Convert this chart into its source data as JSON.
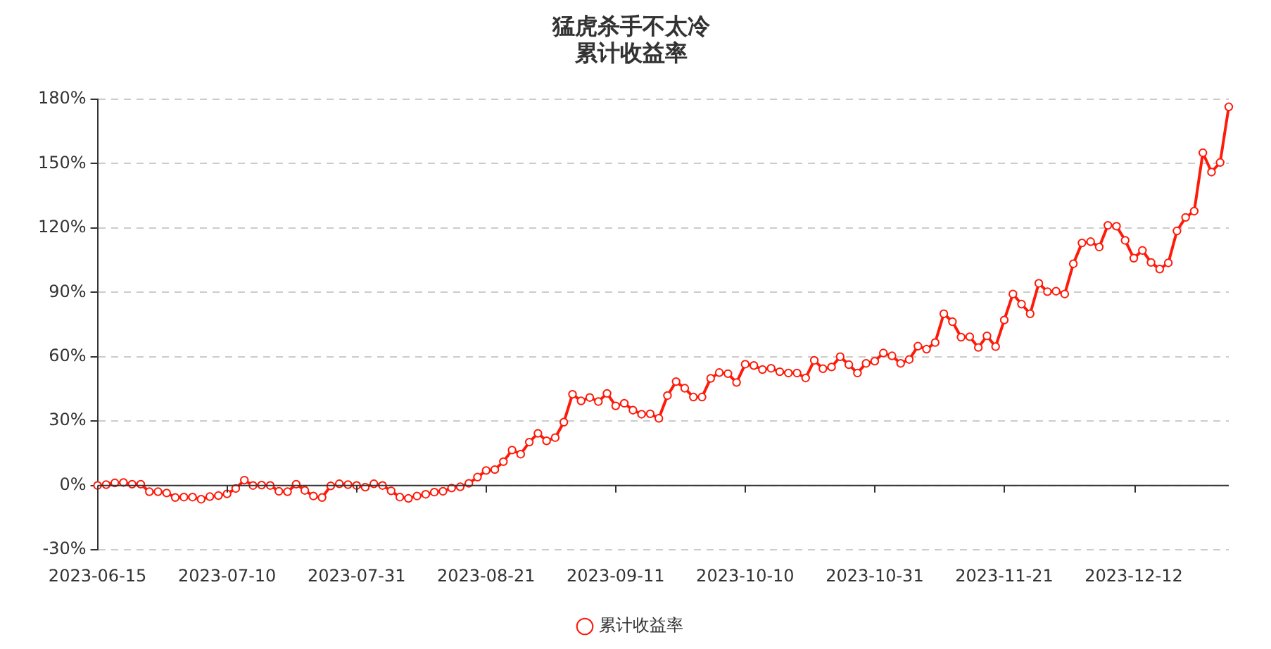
{
  "chart_data": {
    "type": "line",
    "title": "猛虎杀手不太冷",
    "subtitle": "累计收益率",
    "categories": [
      "2023-06-15",
      null,
      null,
      null,
      null,
      null,
      null,
      null,
      null,
      null,
      null,
      null,
      null,
      null,
      null,
      "2023-07-10",
      null,
      null,
      null,
      null,
      null,
      null,
      null,
      null,
      null,
      null,
      null,
      null,
      null,
      null,
      "2023-07-31",
      null,
      null,
      null,
      null,
      null,
      null,
      null,
      null,
      null,
      null,
      null,
      null,
      null,
      null,
      "2023-08-21",
      null,
      null,
      null,
      null,
      null,
      null,
      null,
      null,
      null,
      null,
      null,
      null,
      null,
      null,
      "2023-09-11",
      null,
      null,
      null,
      null,
      null,
      null,
      null,
      null,
      null,
      null,
      null,
      null,
      null,
      null,
      "2023-10-10",
      null,
      null,
      null,
      null,
      null,
      null,
      null,
      null,
      null,
      null,
      null,
      null,
      null,
      null,
      "2023-10-31",
      null,
      null,
      null,
      null,
      null,
      null,
      null,
      null,
      null,
      null,
      null,
      null,
      null,
      null,
      "2023-11-21",
      null,
      null,
      null,
      null,
      null,
      null,
      null,
      null,
      null,
      null,
      null,
      null,
      null,
      null,
      "2023-12-12",
      null,
      null,
      null,
      null,
      null,
      null,
      null,
      null,
      null,
      null,
      null
    ],
    "series": [
      {
        "name": "累计收益率",
        "color": "#ff1a0a",
        "values": [
          0,
          0.4,
          1.2,
          1.4,
          0.6,
          0.6,
          -2.9,
          -2.9,
          -3.5,
          -5.6,
          -5.4,
          -5.4,
          -6.4,
          -5.2,
          -4.7,
          -3.9,
          -1.4,
          2.5,
          0,
          0.2,
          0,
          -2.7,
          -2.9,
          0.6,
          -2.3,
          -4.9,
          -5.6,
          -0.2,
          0.8,
          0.4,
          0,
          -0.8,
          0.8,
          0,
          -2.5,
          -5.4,
          -6,
          -4.9,
          -4.1,
          -3.1,
          -2.7,
          -1.2,
          -0.6,
          1,
          3.9,
          7,
          7.4,
          11.1,
          16.5,
          14.6,
          20.2,
          24.3,
          20.8,
          22.3,
          29.5,
          42.5,
          39.4,
          41,
          39.1,
          42.9,
          37.1,
          38.3,
          35.1,
          33.2,
          33.4,
          31.3,
          41.9,
          48.4,
          45.3,
          41.2,
          41.2,
          49.9,
          52.6,
          52.1,
          48,
          56.5,
          55.9,
          54,
          54.6,
          53,
          52.4,
          52.4,
          50.1,
          58.3,
          54.4,
          55.2,
          60,
          56.3,
          52.4,
          56.9,
          57.9,
          61.7,
          60.4,
          56.9,
          58.7,
          64.9,
          63.5,
          66.6,
          80,
          76.3,
          69.1,
          69.3,
          64.3,
          69.7,
          64.7,
          77.1,
          89.2,
          84.5,
          80,
          94.2,
          90.3,
          90.5,
          89.2,
          103.3,
          113,
          113.6,
          111.1,
          121.2,
          120.8,
          114.2,
          105.9,
          109.5,
          103.9,
          100.8,
          103.7,
          118.6,
          124.9,
          127.8,
          155,
          146,
          150.5,
          176.4
        ]
      }
    ],
    "ylim": [
      -30,
      180
    ],
    "yticks": [
      {
        "value": -30,
        "label": "-30%"
      },
      {
        "value": 0,
        "label": "0%"
      },
      {
        "value": 30,
        "label": "30%"
      },
      {
        "value": 60,
        "label": "60%"
      },
      {
        "value": 90,
        "label": "90%"
      },
      {
        "value": 120,
        "label": "120%"
      },
      {
        "value": 150,
        "label": "150%"
      },
      {
        "value": 180,
        "label": "180%"
      }
    ],
    "grid": "y",
    "legend": "bottom",
    "marker": "circle",
    "line_style": "solid"
  }
}
